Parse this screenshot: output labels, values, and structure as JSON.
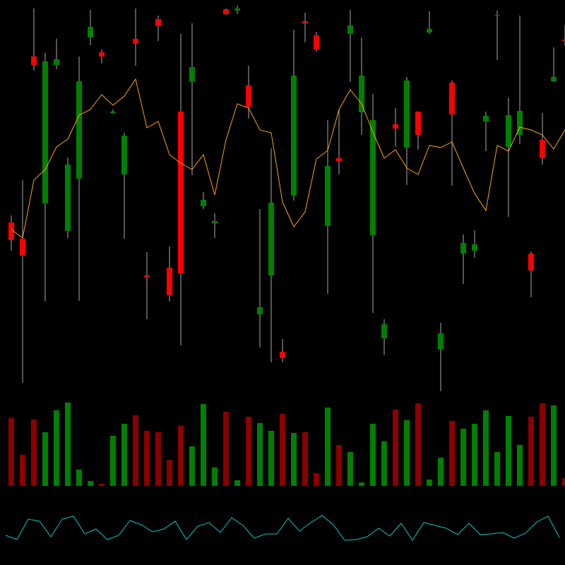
{
  "chart_data": [
    {
      "type": "candlestick",
      "up_color": "#008000",
      "down_color": "#ff0000",
      "wick_color": "#aaaaaa",
      "ylim": [
        240,
        800
      ],
      "open": [
        485,
        462,
        720,
        512,
        708,
        473,
        547,
        747,
        726,
        640,
        553,
        745,
        410,
        773,
        421,
        642,
        684,
        508,
        484,
        787,
        785,
        679,
        355,
        410,
        302,
        523,
        770,
        750,
        480,
        576,
        752,
        641,
        467,
        321,
        624,
        591,
        642,
        754,
        305,
        683,
        441,
        445,
        628,
        778,
        592,
        609,
        441,
        602,
        685,
        744
      ],
      "high": [
        495,
        545,
        788,
        725,
        745,
        577,
        720,
        786,
        730,
        645,
        612,
        788,
        443,
        778,
        451,
        752,
        767,
        528,
        498,
        788,
        792,
        707,
        504,
        590,
        320,
        758,
        782,
        755,
        630,
        645,
        786,
        747,
        667,
        348,
        647,
        691,
        642,
        784,
        343,
        686,
        468,
        474,
        642,
        785,
        662,
        778,
        444,
        640,
        733,
        764
      ],
      "low": [
        445,
        258,
        700,
        373,
        702,
        463,
        374,
        736,
        710,
        639,
        462,
        707,
        348,
        742,
        373,
        311,
        552,
        504,
        463,
        779,
        780,
        632,
        308,
        287,
        287,
        516,
        740,
        727,
        384,
        553,
        684,
        609,
        357,
        297,
        592,
        538,
        588,
        752,
        246,
        537,
        398,
        435,
        586,
        715,
        493,
        596,
        379,
        567,
        684,
        735
      ],
      "close": [
        460,
        438,
        708,
        713,
        716,
        567,
        685,
        762,
        720,
        642,
        608,
        738,
        408,
        763,
        382,
        413,
        705,
        517,
        487,
        780,
        788,
        649,
        365,
        513,
        293,
        693,
        767,
        730,
        565,
        572,
        764,
        693,
        630,
        341,
        618,
        686,
        609,
        759,
        328,
        638,
        456,
        454,
        636,
        779,
        637,
        643,
        417,
        576,
        691,
        742
      ],
      "overlay": {
        "color": "#ffa500",
        "values": [
          475,
          463,
          545,
          560,
          592,
          603,
          637,
          645,
          666,
          651,
          664,
          688,
          619,
          628,
          581,
          569,
          560,
          581,
          524,
          602,
          653,
          647,
          616,
          612,
          514,
          479,
          500,
          575,
          587,
          645,
          673,
          653,
          613,
          576,
          588,
          562,
          553,
          594,
          591,
          599,
          562,
          526,
          502,
          594,
          586,
          620,
          616,
          609,
          589,
          616
        ]
      }
    },
    {
      "type": "bar",
      "up_color": "#008000",
      "down_color": "#8b0000",
      "ylim": [
        0,
        120
      ],
      "values": [
        96,
        44,
        94,
        76,
        107,
        118,
        23,
        7,
        3,
        71,
        88,
        100,
        78,
        76,
        37,
        85,
        56,
        116,
        26,
        105,
        8,
        98,
        89,
        78,
        102,
        75,
        76,
        18,
        111,
        58,
        48,
        5,
        88,
        63,
        108,
        93,
        117,
        9,
        40,
        92,
        81,
        88,
        107,
        48,
        99,
        58,
        98,
        117,
        114,
        11
      ]
    },
    {
      "type": "line",
      "color": "#00cccc",
      "ylim": [
        0,
        100
      ],
      "values": [
        42,
        36,
        65,
        62,
        40,
        65,
        69,
        44,
        51,
        36,
        42,
        63,
        57,
        47,
        51,
        62,
        36,
        55,
        60,
        46,
        67,
        56,
        38,
        44,
        44,
        66,
        48,
        60,
        70,
        57,
        35,
        36,
        40,
        52,
        41,
        59,
        35,
        60,
        56,
        52,
        43,
        59,
        43,
        44,
        46,
        38,
        45,
        61,
        69,
        39
      ]
    }
  ]
}
